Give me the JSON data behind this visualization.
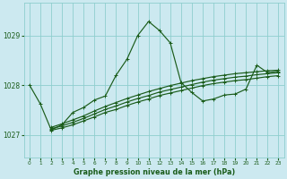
{
  "title": "Graphe pression niveau de la mer (hPa)",
  "bg_color": "#cce9f0",
  "grid_color": "#8ecece",
  "line_color": "#1a5c1a",
  "marker_color": "#1a5c1a",
  "label_color": "#1a5c1a",
  "x_ticks": [
    0,
    1,
    2,
    3,
    4,
    5,
    6,
    7,
    8,
    9,
    10,
    11,
    12,
    13,
    14,
    15,
    16,
    17,
    18,
    19,
    20,
    21,
    22,
    23
  ],
  "y_ticks": [
    1027,
    1028,
    1029
  ],
  "ylim": [
    1026.55,
    1029.65
  ],
  "xlim": [
    -0.5,
    23.5
  ],
  "series1": [
    1028.0,
    1027.62,
    1027.1,
    1027.2,
    1027.45,
    1027.55,
    1027.7,
    1027.78,
    1028.2,
    1028.52,
    1029.0,
    1029.28,
    1029.1,
    1028.85,
    1028.05,
    1027.85,
    1027.68,
    1027.72,
    1027.8,
    1027.82,
    1027.92,
    1028.4,
    1028.25,
    1028.28
  ],
  "series2": [
    null,
    null,
    1027.15,
    1027.22,
    1027.3,
    1027.38,
    1027.48,
    1027.57,
    1027.65,
    1027.73,
    1027.8,
    1027.87,
    1027.93,
    1027.99,
    1028.04,
    1028.09,
    1028.13,
    1028.17,
    1028.2,
    1028.23,
    1028.25,
    1028.27,
    1028.29,
    1028.3
  ],
  "series3": [
    null,
    null,
    1027.12,
    1027.18,
    1027.25,
    1027.33,
    1027.42,
    1027.51,
    1027.58,
    1027.66,
    1027.73,
    1027.79,
    1027.86,
    1027.91,
    1027.96,
    1028.01,
    1028.06,
    1028.1,
    1028.13,
    1028.16,
    1028.18,
    1028.21,
    1028.23,
    1028.25
  ],
  "series4": [
    null,
    null,
    1027.09,
    1027.14,
    1027.2,
    1027.28,
    1027.36,
    1027.45,
    1027.51,
    1027.59,
    1027.66,
    1027.72,
    1027.79,
    1027.84,
    1027.89,
    1027.94,
    1027.99,
    1028.03,
    1028.06,
    1028.09,
    1028.11,
    1028.14,
    1028.17,
    1028.19
  ]
}
